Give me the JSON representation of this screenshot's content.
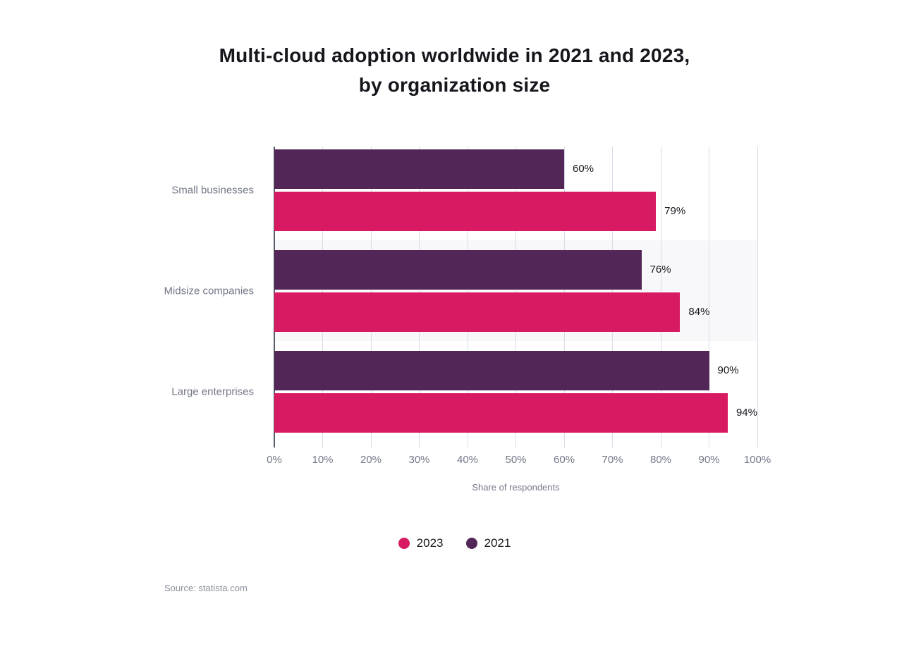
{
  "title": {
    "line1": "Multi-cloud adoption worldwide in 2021 and 2023,",
    "line2": "by organization size"
  },
  "source": "Source: statista.com",
  "chart_data": {
    "type": "bar",
    "orientation": "horizontal",
    "title": "Multi-cloud adoption worldwide in 2021 and 2023, by organization size",
    "categories": [
      "Small businesses",
      "Midsize companies",
      "Large enterprises"
    ],
    "series": [
      {
        "name": "2021",
        "color": "#522657",
        "values": [
          60,
          76,
          90
        ]
      },
      {
        "name": "2023",
        "color": "#D81A62",
        "values": [
          79,
          84,
          94
        ]
      }
    ],
    "value_label_format": "{v}%",
    "xlabel": "Share of respondents",
    "x_ticks": [
      "0%",
      "10%",
      "20%",
      "30%",
      "40%",
      "50%",
      "60%",
      "70%",
      "80%",
      "90%",
      "100%"
    ],
    "xlim": [
      0,
      100
    ],
    "grid": true,
    "striped_row_indexes": [
      1
    ],
    "legend_position": "bottom",
    "legend": [
      {
        "label": "2023",
        "color": "#D81A62"
      },
      {
        "label": "2021",
        "color": "#522657"
      }
    ],
    "colors": {
      "axis_line": "#555C6B",
      "gridline": "#D9DAE6",
      "row_stripe": "#F8F8FA",
      "muted_text": "#737887",
      "value_text": "#16181D"
    }
  }
}
